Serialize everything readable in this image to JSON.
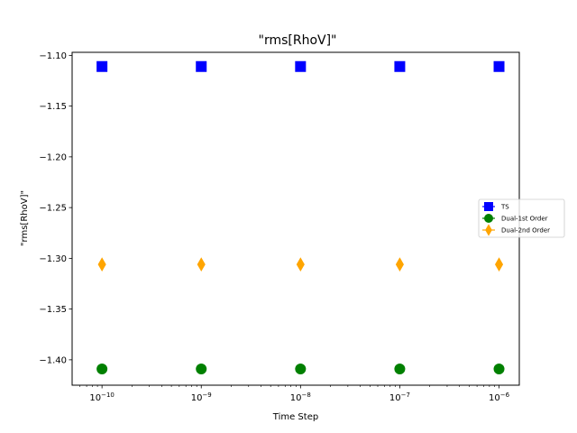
{
  "chart_data": {
    "type": "scatter",
    "title": "\"rms[RhoV]\"",
    "xlabel": "Time Step",
    "ylabel": "\"rms[RhoV]\"",
    "x_scale": "log",
    "x": [
      1e-10,
      1e-09,
      1e-08,
      1e-07,
      1e-06
    ],
    "xlim": [
      5e-11,
      1.6e-06
    ],
    "ylim": [
      -1.425,
      -1.097
    ],
    "x_ticks": [
      {
        "value": 1e-10,
        "base": "10",
        "exp": "−10"
      },
      {
        "value": 1e-09,
        "base": "10",
        "exp": "−9"
      },
      {
        "value": 1e-08,
        "base": "10",
        "exp": "−8"
      },
      {
        "value": 1e-07,
        "base": "10",
        "exp": "−7"
      },
      {
        "value": 1e-06,
        "base": "10",
        "exp": "−6"
      }
    ],
    "y_ticks": [
      {
        "value": -1.1,
        "label": "−1.10"
      },
      {
        "value": -1.15,
        "label": "−1.15"
      },
      {
        "value": -1.2,
        "label": "−1.20"
      },
      {
        "value": -1.25,
        "label": "−1.25"
      },
      {
        "value": -1.3,
        "label": "−1.30"
      },
      {
        "value": -1.35,
        "label": "−1.35"
      },
      {
        "value": -1.4,
        "label": "−1.40"
      }
    ],
    "grid": false,
    "legend_position": "center-right",
    "series": [
      {
        "name": "TS",
        "color": "#0000ff",
        "marker": "square",
        "values": [
          -1.111,
          -1.111,
          -1.111,
          -1.111,
          -1.111
        ]
      },
      {
        "name": "Dual-1st Order",
        "color": "#008000",
        "marker": "circle",
        "values": [
          -1.409,
          -1.409,
          -1.409,
          -1.409,
          -1.409
        ]
      },
      {
        "name": "Dual-2nd Order",
        "color": "#ffa500",
        "marker": "thin-diamond",
        "values": [
          -1.306,
          -1.306,
          -1.306,
          -1.306,
          -1.306
        ]
      }
    ]
  }
}
